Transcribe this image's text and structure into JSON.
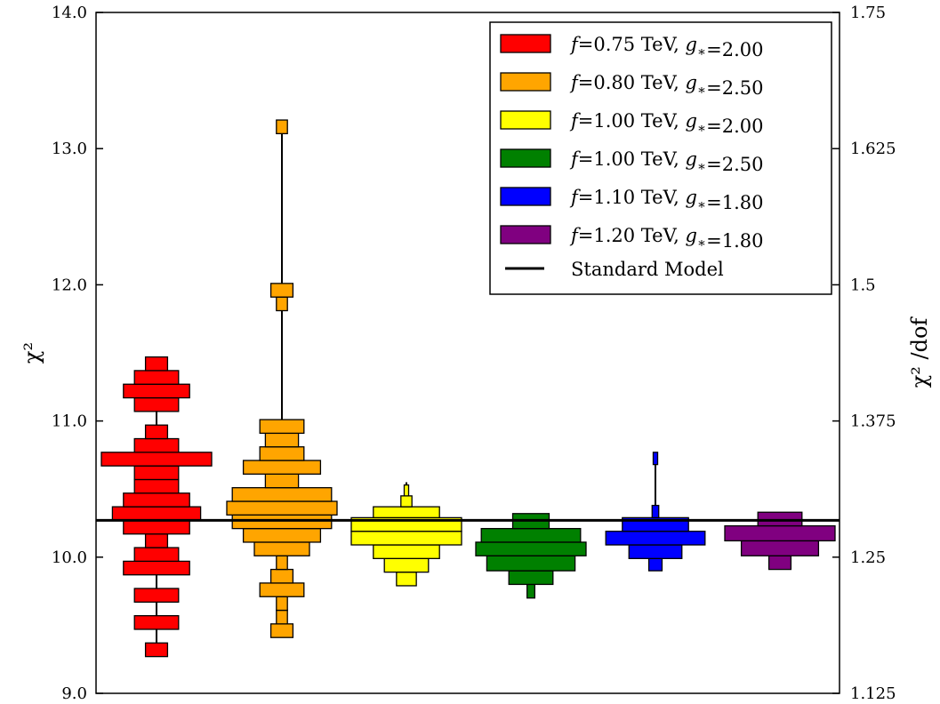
{
  "chart_data": {
    "type": "histogram-violin",
    "y_left": {
      "label": "χ²",
      "lim": [
        9.0,
        14.0
      ],
      "ticks": [
        "9.0",
        "10.0",
        "11.0",
        "12.0",
        "13.0",
        "14.0"
      ]
    },
    "y_right": {
      "label": "χ² /dof",
      "lim": [
        1.125,
        1.75
      ],
      "ticks": [
        "1.125",
        "1.25",
        "1.375",
        "1.5",
        "1.625",
        "1.75"
      ]
    },
    "grid": false,
    "legend_position": "top-right",
    "reference_line": {
      "name": "Standard Model",
      "value": 10.27,
      "color": "#000000"
    },
    "series": [
      {
        "name": "f=0.75 TeV, g*=2.00",
        "legend": {
          "f": "0.75",
          "g": "2.00"
        },
        "color": "#ff0000",
        "range": [
          9.27,
          11.43
        ],
        "bins": [
          {
            "lo": 9.27,
            "hi": 9.37,
            "w": 0.2
          },
          {
            "lo": 9.47,
            "hi": 9.57,
            "w": 0.4
          },
          {
            "lo": 9.67,
            "hi": 9.77,
            "w": 0.4
          },
          {
            "lo": 9.87,
            "hi": 9.97,
            "w": 0.6
          },
          {
            "lo": 9.97,
            "hi": 10.07,
            "w": 0.4
          },
          {
            "lo": 10.07,
            "hi": 10.17,
            "w": 0.2
          },
          {
            "lo": 10.17,
            "hi": 10.27,
            "w": 0.6
          },
          {
            "lo": 10.27,
            "hi": 10.37,
            "w": 0.8
          },
          {
            "lo": 10.37,
            "hi": 10.47,
            "w": 0.6
          },
          {
            "lo": 10.47,
            "hi": 10.57,
            "w": 0.4
          },
          {
            "lo": 10.57,
            "hi": 10.67,
            "w": 0.4
          },
          {
            "lo": 10.67,
            "hi": 10.77,
            "w": 1.0
          },
          {
            "lo": 10.77,
            "hi": 10.87,
            "w": 0.4
          },
          {
            "lo": 10.87,
            "hi": 10.97,
            "w": 0.2
          },
          {
            "lo": 11.07,
            "hi": 11.17,
            "w": 0.4
          },
          {
            "lo": 11.17,
            "hi": 11.27,
            "w": 0.6
          },
          {
            "lo": 11.27,
            "hi": 11.37,
            "w": 0.4
          },
          {
            "lo": 11.37,
            "hi": 11.47,
            "w": 0.2
          }
        ]
      },
      {
        "name": "f=0.80 TeV, g*=2.50",
        "legend": {
          "f": "0.80",
          "g": "2.50"
        },
        "color": "#ffa500",
        "range": [
          9.41,
          13.17
        ],
        "bins": [
          {
            "lo": 9.41,
            "hi": 9.51,
            "w": 0.2
          },
          {
            "lo": 9.51,
            "hi": 9.61,
            "w": 0.1
          },
          {
            "lo": 9.61,
            "hi": 9.71,
            "w": 0.1
          },
          {
            "lo": 9.71,
            "hi": 9.81,
            "w": 0.4
          },
          {
            "lo": 9.81,
            "hi": 9.91,
            "w": 0.2
          },
          {
            "lo": 9.91,
            "hi": 10.01,
            "w": 0.1
          },
          {
            "lo": 10.01,
            "hi": 10.11,
            "w": 0.5
          },
          {
            "lo": 10.11,
            "hi": 10.21,
            "w": 0.7
          },
          {
            "lo": 10.21,
            "hi": 10.31,
            "w": 0.9
          },
          {
            "lo": 10.31,
            "hi": 10.41,
            "w": 1.0
          },
          {
            "lo": 10.41,
            "hi": 10.51,
            "w": 0.9
          },
          {
            "lo": 10.51,
            "hi": 10.61,
            "w": 0.3
          },
          {
            "lo": 10.61,
            "hi": 10.71,
            "w": 0.7
          },
          {
            "lo": 10.71,
            "hi": 10.81,
            "w": 0.4
          },
          {
            "lo": 10.81,
            "hi": 10.91,
            "w": 0.3
          },
          {
            "lo": 10.91,
            "hi": 11.01,
            "w": 0.4
          },
          {
            "lo": 11.81,
            "hi": 11.91,
            "w": 0.1
          },
          {
            "lo": 11.91,
            "hi": 12.01,
            "w": 0.2
          },
          {
            "lo": 13.11,
            "hi": 13.21,
            "w": 0.1
          }
        ]
      },
      {
        "name": "f=1.00 TeV, g*=2.00",
        "legend": {
          "f": "1.00",
          "g": "2.00"
        },
        "color": "#ffff00",
        "range": [
          9.79,
          10.55
        ],
        "bins": [
          {
            "lo": 9.79,
            "hi": 9.89,
            "w": 0.18
          },
          {
            "lo": 9.89,
            "hi": 9.99,
            "w": 0.4
          },
          {
            "lo": 9.99,
            "hi": 10.09,
            "w": 0.6
          },
          {
            "lo": 10.09,
            "hi": 10.19,
            "w": 1.0
          },
          {
            "lo": 10.19,
            "hi": 10.29,
            "w": 1.0
          },
          {
            "lo": 10.29,
            "hi": 10.37,
            "w": 0.6
          },
          {
            "lo": 10.37,
            "hi": 10.45,
            "w": 0.1
          },
          {
            "lo": 10.45,
            "hi": 10.53,
            "w": 0.04
          }
        ]
      },
      {
        "name": "f=1.00 TeV, g*=2.50",
        "legend": {
          "f": "1.00",
          "g": "2.50"
        },
        "color": "#008000",
        "range": [
          9.7,
          10.32
        ],
        "bins": [
          {
            "lo": 9.7,
            "hi": 9.8,
            "w": 0.07
          },
          {
            "lo": 9.8,
            "hi": 9.9,
            "w": 0.4
          },
          {
            "lo": 9.9,
            "hi": 10.01,
            "w": 0.8
          },
          {
            "lo": 10.01,
            "hi": 10.11,
            "w": 1.0
          },
          {
            "lo": 10.11,
            "hi": 10.21,
            "w": 0.9
          },
          {
            "lo": 10.21,
            "hi": 10.32,
            "w": 0.33
          }
        ]
      },
      {
        "name": "f=1.10 TeV, g*=1.80",
        "legend": {
          "f": "1.10",
          "g": "1.80"
        },
        "color": "#0000ff",
        "range": [
          9.9,
          10.77
        ],
        "bins": [
          {
            "lo": 9.9,
            "hi": 9.99,
            "w": 0.12
          },
          {
            "lo": 9.99,
            "hi": 10.09,
            "w": 0.48
          },
          {
            "lo": 10.09,
            "hi": 10.19,
            "w": 0.9
          },
          {
            "lo": 10.19,
            "hi": 10.29,
            "w": 0.6
          },
          {
            "lo": 10.29,
            "hi": 10.38,
            "w": 0.06
          },
          {
            "lo": 10.68,
            "hi": 10.77,
            "w": 0.02
          }
        ]
      },
      {
        "name": "f=1.20 TeV, g*=1.80",
        "legend": {
          "f": "1.20",
          "g": "1.80"
        },
        "color": "#800080",
        "range": [
          9.91,
          10.33
        ],
        "bins": [
          {
            "lo": 9.91,
            "hi": 10.01,
            "w": 0.2
          },
          {
            "lo": 10.01,
            "hi": 10.12,
            "w": 0.7
          },
          {
            "lo": 10.12,
            "hi": 10.23,
            "w": 1.0
          },
          {
            "lo": 10.23,
            "hi": 10.33,
            "w": 0.4
          }
        ]
      }
    ]
  }
}
